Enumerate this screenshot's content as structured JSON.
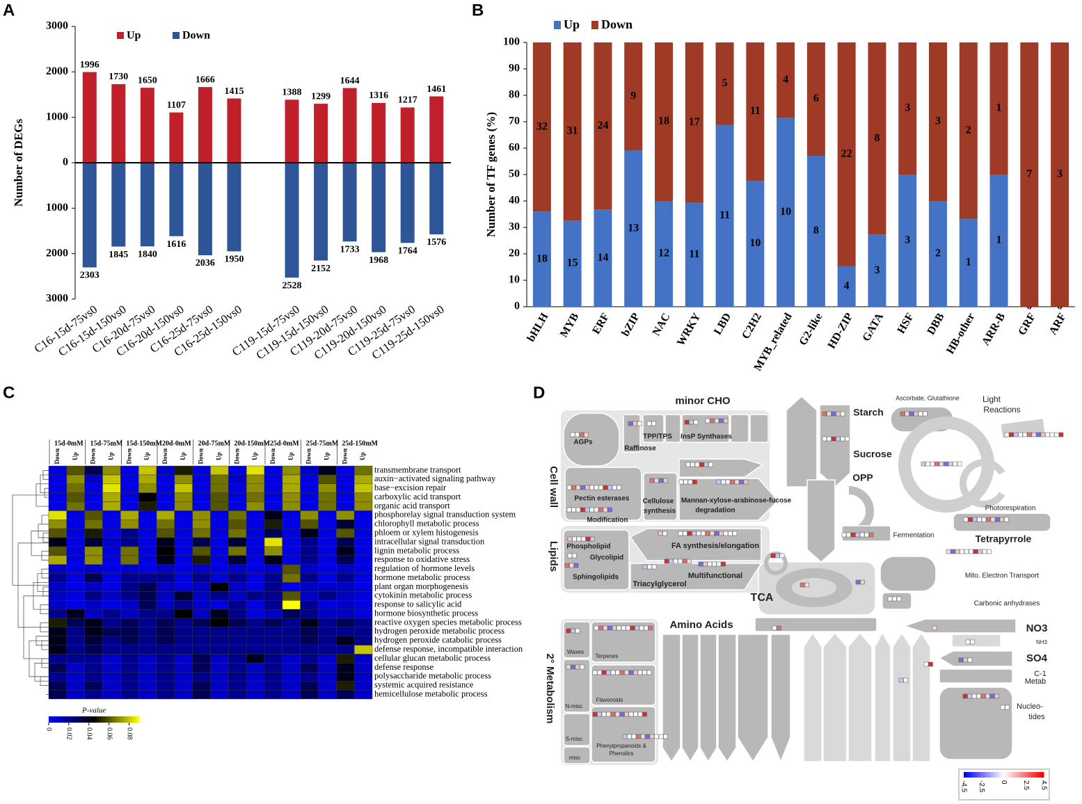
{
  "chart_data": [
    {
      "type": "diverging_bar",
      "panel": "A",
      "y_label": "Number of DEGs",
      "categories": [
        "C16-15d-75vs0",
        "C16-15d-150vs0",
        "C16-20d-75vs0",
        "C16-20d-150vs0",
        "C16-25d-75vs0",
        "C16-25d-150vs0",
        null,
        "C119-15d-75vs0",
        "C119-15d-150vs0",
        "C119-20d-75vs0",
        "C119-20d-150vs0",
        "C119-25d-75vs0",
        "C119-25d-150vs0"
      ],
      "series": [
        {
          "name": "Up",
          "color": "#c0202a",
          "values": [
            1996,
            1730,
            1650,
            1107,
            1666,
            1415,
            null,
            1388,
            1299,
            1644,
            1316,
            1217,
            1461
          ]
        },
        {
          "name": "Down",
          "color": "#2e5597",
          "values": [
            -2303,
            -1845,
            -1840,
            -1616,
            -2036,
            -1950,
            null,
            -2528,
            -2152,
            -1733,
            -1968,
            -1764,
            -1576
          ],
          "value_labels": [
            "2303",
            "1845",
            "1840",
            "1616",
            "2036",
            "1950",
            null,
            "2528",
            "2152",
            "1733",
            "1968",
            "1764",
            "1576"
          ]
        }
      ],
      "ylim": [
        -3000,
        3000
      ],
      "yticks": [
        {
          "value": -3000,
          "label": "3000"
        },
        {
          "value": -2000,
          "label": "2000"
        },
        {
          "value": -1000,
          "label": "1000"
        },
        0,
        1000,
        2000,
        3000
      ],
      "legend": "top"
    },
    {
      "type": "stacked_bar",
      "panel": "B",
      "y_label": "Number of TF genes (%)",
      "categories": [
        "bHLH",
        "MYB",
        "ERF",
        "bZIP",
        "NAC",
        "WRKY",
        "LBD",
        "C2H2",
        "MYB_related",
        "G2-like",
        "HD-ZIP",
        "GATA",
        "HSF",
        "DBB",
        "HB-other",
        "ARR-B",
        "GRF",
        "ARF"
      ],
      "series": [
        {
          "name": "Up",
          "color": "#4472c4",
          "values": [
            36.0,
            32.6,
            36.8,
            59.1,
            40.0,
            39.3,
            68.8,
            47.6,
            71.4,
            57.1,
            15.4,
            27.3,
            50.0,
            40.0,
            33.3,
            50.0,
            0,
            0
          ],
          "counts": [
            18,
            15,
            14,
            13,
            12,
            11,
            11,
            10,
            10,
            8,
            4,
            3,
            3,
            2,
            1,
            1,
            0,
            0
          ]
        },
        {
          "name": "Down",
          "color": "#9e3a26",
          "values": [
            64.0,
            67.4,
            63.2,
            40.9,
            60.0,
            60.7,
            31.2,
            52.4,
            28.6,
            42.9,
            84.6,
            72.7,
            50.0,
            60.0,
            66.7,
            50.0,
            100,
            100
          ],
          "counts": [
            32,
            31,
            24,
            9,
            18,
            17,
            5,
            11,
            4,
            6,
            22,
            8,
            3,
            3,
            2,
            1,
            7,
            3
          ]
        }
      ],
      "ylim": [
        0,
        100
      ],
      "yticks": [
        0,
        10,
        20,
        30,
        40,
        50,
        60,
        70,
        80,
        90,
        100
      ],
      "legend": "top"
    },
    {
      "type": "heatmap",
      "panel": "C",
      "column_groups": [
        "15d-0mM",
        "15d-75mM",
        "15d-150mM",
        "20d-0mM",
        "20d-75mM",
        "20d-150mM",
        "25d-0mM",
        "25d-75mM",
        "25d-150mM"
      ],
      "columns": [
        "Down",
        "Up",
        "Down",
        "Up",
        "Down",
        "Up",
        "Down",
        "Up",
        "Down",
        "Up",
        "Down",
        "Up",
        "Down",
        "Up",
        "Down",
        "Up",
        "Down",
        "Up"
      ],
      "rows": [
        "transmembrane transport",
        "auxin−activated signaling pathway",
        "base−excision repair",
        "carboxylic acid transport",
        "organic acid transport",
        "phosphorelay signal transduction system",
        "chlorophyll metabolic process",
        "phloem or xylem histogenesis",
        "intracellular signal transduction",
        "lignin metabolic process",
        "response to oxidative stress",
        "regulation of hormone levels",
        "hormone metabolic process",
        "plant organ morphogenesis",
        "cytokinin metabolic process",
        "response to salicylic acid",
        "hormone biosynthetic process",
        "reactive oxygen species metabolic process",
        "hydrogen peroxide metabolic process",
        "hydrogen peroxide catabolic process",
        "defense response, incompatible interaction",
        "cellular glucan metabolic process",
        "defense response",
        "polysaccharide metabolic process",
        "systemic acquired resistance",
        "hemicellulose metabolic process"
      ],
      "values": [
        [
          0.005,
          0.06,
          0.03,
          0.07,
          0.005,
          0.08,
          0.01,
          0.05,
          0.005,
          0.08,
          0.005,
          0.085,
          0.005,
          0.07,
          0.01,
          0.04,
          0.005,
          0.065
        ],
        [
          0.005,
          0.07,
          0.01,
          0.08,
          0.005,
          0.075,
          0.005,
          0.07,
          0.005,
          0.065,
          0.01,
          0.07,
          0.005,
          0.075,
          0.005,
          0.06,
          0.005,
          0.075
        ],
        [
          0.005,
          0.065,
          0.005,
          0.085,
          0.005,
          0.07,
          0.005,
          0.08,
          0.005,
          0.065,
          0.005,
          0.07,
          0.005,
          0.075,
          0.005,
          0.07,
          0.005,
          0.08
        ],
        [
          0.005,
          0.06,
          0.005,
          0.075,
          0.005,
          0.045,
          0.005,
          0.07,
          0.005,
          0.06,
          0.005,
          0.065,
          0.005,
          0.07,
          0.005,
          0.065,
          0.005,
          0.07
        ],
        [
          0.005,
          0.065,
          0.005,
          0.075,
          0.005,
          0.05,
          0.005,
          0.07,
          0.005,
          0.06,
          0.005,
          0.07,
          0.005,
          0.07,
          0.005,
          0.065,
          0.005,
          0.07
        ],
        [
          0.085,
          0.005,
          0.06,
          0.005,
          0.075,
          0.005,
          0.075,
          0.005,
          0.07,
          0.005,
          0.065,
          0.005,
          0.04,
          0.005,
          0.07,
          0.005,
          0.07,
          0.005
        ],
        [
          0.07,
          0.005,
          0.065,
          0.005,
          0.07,
          0.005,
          0.065,
          0.005,
          0.07,
          0.005,
          0.06,
          0.005,
          0.05,
          0.005,
          0.06,
          0.005,
          0.035,
          0.005
        ],
        [
          0.06,
          0.005,
          0.05,
          0.005,
          0.02,
          0.005,
          0.06,
          0.005,
          0.065,
          0.005,
          0.065,
          0.005,
          0.03,
          0.005,
          0.04,
          0.005,
          0.06,
          0.005
        ],
        [
          0.04,
          0.005,
          0.035,
          0.01,
          0.02,
          0.005,
          0.04,
          0.005,
          0.03,
          0.005,
          0.035,
          0.005,
          0.085,
          0.005,
          0.02,
          0.005,
          0.03,
          0.005
        ],
        [
          0.06,
          0.005,
          0.07,
          0.005,
          0.065,
          0.005,
          0.045,
          0.005,
          0.06,
          0.005,
          0.065,
          0.005,
          0.07,
          0.005,
          0.02,
          0.005,
          0.04,
          0.005
        ],
        [
          0.075,
          0.005,
          0.07,
          0.005,
          0.065,
          0.005,
          0.04,
          0.005,
          0.05,
          0.005,
          0.035,
          0.005,
          0.04,
          0.005,
          0.02,
          0.005,
          0.03,
          0.005
        ],
        [
          0.01,
          0.005,
          0.01,
          0.005,
          0.01,
          0.005,
          0.01,
          0.005,
          0.01,
          0.005,
          0.01,
          0.005,
          0.01,
          0.06,
          0.01,
          0.005,
          0.01,
          0.005
        ],
        [
          0.02,
          0.005,
          0.03,
          0.005,
          0.02,
          0.02,
          0.02,
          0.005,
          0.02,
          0.005,
          0.02,
          0.005,
          0.02,
          0.065,
          0.02,
          0.005,
          0.02,
          0.005
        ],
        [
          0.01,
          0.005,
          0.01,
          0.005,
          0.02,
          0.03,
          0.01,
          0.005,
          0.01,
          0.045,
          0.01,
          0.005,
          0.02,
          0.005,
          0.01,
          0.01,
          0.01,
          0.005
        ],
        [
          0.01,
          0.005,
          0.02,
          0.01,
          0.02,
          0.03,
          0.01,
          0.035,
          0.01,
          0.02,
          0.01,
          0.02,
          0.02,
          0.06,
          0.01,
          0.02,
          0.01,
          0.005
        ],
        [
          0.01,
          0.005,
          0.01,
          0.005,
          0.01,
          0.03,
          0.01,
          0.02,
          0.01,
          0.005,
          0.02,
          0.005,
          0.02,
          0.09,
          0.02,
          0.005,
          0.01,
          0.005
        ],
        [
          0.02,
          0.04,
          0.01,
          0.02,
          0.01,
          0.02,
          0.02,
          0.045,
          0.01,
          0.04,
          0.02,
          0.005,
          0.01,
          0.03,
          0.02,
          0.01,
          0.01,
          0.005
        ],
        [
          0.05,
          0.03,
          0.04,
          0.02,
          0.03,
          0.02,
          0.03,
          0.02,
          0.03,
          0.045,
          0.03,
          0.02,
          0.03,
          0.02,
          0.04,
          0.02,
          0.03,
          0.02
        ],
        [
          0.04,
          0.02,
          0.04,
          0.03,
          0.03,
          0.02,
          0.03,
          0.02,
          0.02,
          0.02,
          0.02,
          0.02,
          0.02,
          0.02,
          0.03,
          0.02,
          0.02,
          0.02
        ],
        [
          0.04,
          0.02,
          0.035,
          0.02,
          0.03,
          0.02,
          0.03,
          0.02,
          0.02,
          0.02,
          0.02,
          0.02,
          0.02,
          0.02,
          0.03,
          0.02,
          0.04,
          0.02
        ],
        [
          0.04,
          0.02,
          0.03,
          0.02,
          0.02,
          0.02,
          0.02,
          0.02,
          0.02,
          0.02,
          0.02,
          0.02,
          0.02,
          0.02,
          0.02,
          0.02,
          0.02,
          0.08
        ],
        [
          0.02,
          0.02,
          0.02,
          0.01,
          0.02,
          0.01,
          0.02,
          0.01,
          0.03,
          0.01,
          0.02,
          0.04,
          0.02,
          0.01,
          0.02,
          0.01,
          0.05,
          0.01
        ],
        [
          0.03,
          0.01,
          0.02,
          0.01,
          0.02,
          0.01,
          0.02,
          0.01,
          0.03,
          0.01,
          0.02,
          0.01,
          0.02,
          0.01,
          0.03,
          0.01,
          0.04,
          0.01
        ],
        [
          0.02,
          0.01,
          0.02,
          0.01,
          0.02,
          0.01,
          0.02,
          0.01,
          0.02,
          0.01,
          0.02,
          0.01,
          0.02,
          0.01,
          0.02,
          0.01,
          0.04,
          0.01
        ],
        [
          0.03,
          0.01,
          0.03,
          0.01,
          0.02,
          0.01,
          0.02,
          0.01,
          0.03,
          0.01,
          0.02,
          0.01,
          0.02,
          0.01,
          0.03,
          0.01,
          0.05,
          0.01
        ],
        [
          0.03,
          0.01,
          0.02,
          0.01,
          0.02,
          0.01,
          0.02,
          0.01,
          0.03,
          0.01,
          0.02,
          0.01,
          0.02,
          0.01,
          0.03,
          0.01,
          0.03,
          0.01
        ]
      ],
      "colors": [
        "#0000ff",
        "#000000",
        "#ffff00"
      ],
      "colorbar": {
        "title": "P-value",
        "lim": [
          0,
          0.09
        ],
        "ticks": [
          0,
          0.02,
          0.04,
          0.06,
          0.08
        ]
      }
    }
  ],
  "diagram": {
    "panel": "D",
    "labels": [
      "minor CHO",
      "AGPs",
      "Raffinose",
      "TPP/TPS",
      "InsP Synthases",
      "Cell wall",
      "Pectin esterases",
      "Cellulose",
      "synthesis",
      "Mannan-xylose-arabinose-fucose",
      "degradation",
      "Modification",
      "Lipids",
      "Phospholipid",
      "Glycolipid",
      "Sphingolipids",
      "FA synthesis/elongation",
      "Multifunctional",
      "Triacylglycerol",
      "Starch",
      "Sucrose",
      "OPP",
      "TCA",
      "Ascorbate, Glutathione",
      "Light",
      "Reactions",
      "Photorespiration",
      "Fermentation",
      "Tetrapyrrole",
      "Mito. Electron Transport",
      "Carbonic anhydrases",
      "Amino Acids",
      "2° Metabolism",
      "Waxes",
      "Terpenes",
      "N-misc",
      "Flavonoids",
      "S-misc",
      "misc",
      "Phenylpropanoids &",
      "Phenolics",
      "NO3",
      "NH3",
      "SO4",
      "C-1",
      "Metab",
      "Nucleo-",
      "tides"
    ],
    "scale": [
      -4.5,
      -2.5,
      0,
      2.5,
      4.5
    ]
  }
}
